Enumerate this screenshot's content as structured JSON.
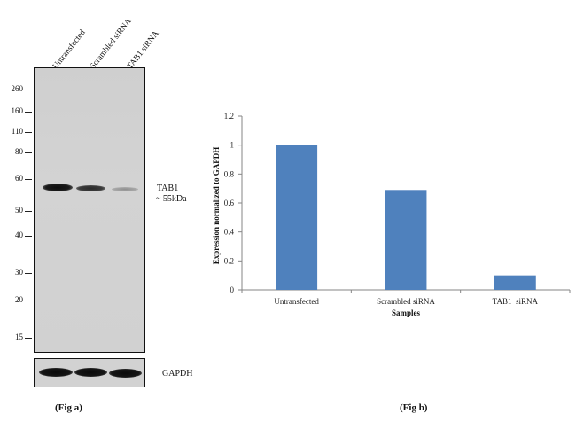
{
  "blot": {
    "lane_labels": [
      "Untransfected",
      "Scrambled siRNA",
      "TAB1 siRNA"
    ],
    "mw_markers": [
      "260",
      "160",
      "110",
      "80",
      "60",
      "50",
      "40",
      "30",
      "20",
      "15"
    ],
    "target_label_line1": "TAB1",
    "target_label_line2": "~ 55kDa",
    "loading_control_label": "GAPDH",
    "fig_a_label": "(Fig a)",
    "fig_b_label": "(Fig b)"
  },
  "chart_data": {
    "type": "bar",
    "categories": [
      "Untransfected",
      "Scrambled siRNA",
      "TAB1  siRNA"
    ],
    "values": [
      1.0,
      0.69,
      0.1
    ],
    "xlabel": "Samples",
    "ylabel": "Expression normalized to GAPDH",
    "ylim": [
      0,
      1.2
    ],
    "yticks": [
      "0",
      "0.2",
      "0.4",
      "0.6",
      "0.8",
      "1",
      "1.2"
    ],
    "bar_color": "#4f81bd",
    "grid": false,
    "legend": "none"
  }
}
